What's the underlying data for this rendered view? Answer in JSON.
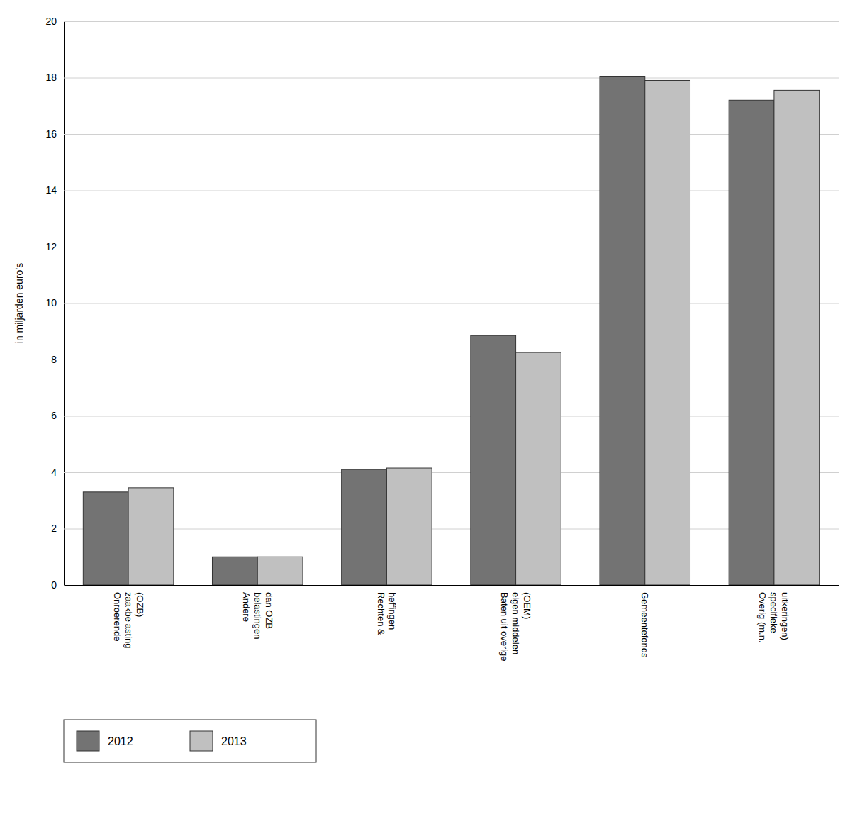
{
  "chart_data": {
    "type": "bar",
    "categories": [
      "Onroerende\nzaakbelasting\n(OZB)",
      "Andere\nbelastingen\ndan OZB",
      "Rechten &\nheffingen",
      "Baten uit overige\neigen middelen\n(OEM)",
      "Gemeentefonds",
      "Overig (m.n.\nspecifieke\nuitkeringen)"
    ],
    "series": [
      {
        "name": "2012",
        "color": "#737373",
        "values": [
          3.3,
          1.0,
          4.1,
          8.85,
          18.05,
          17.2
        ]
      },
      {
        "name": "2013",
        "color": "#c0c0c0",
        "values": [
          3.45,
          1.0,
          4.15,
          8.25,
          17.9,
          17.55
        ]
      }
    ],
    "ylabel": "in miljarden euro’s",
    "ylim": [
      0,
      20
    ],
    "yticks": [
      0,
      2,
      4,
      6,
      8,
      10,
      12,
      14,
      16,
      18,
      20
    ],
    "grid": true,
    "legend": "bottom"
  }
}
